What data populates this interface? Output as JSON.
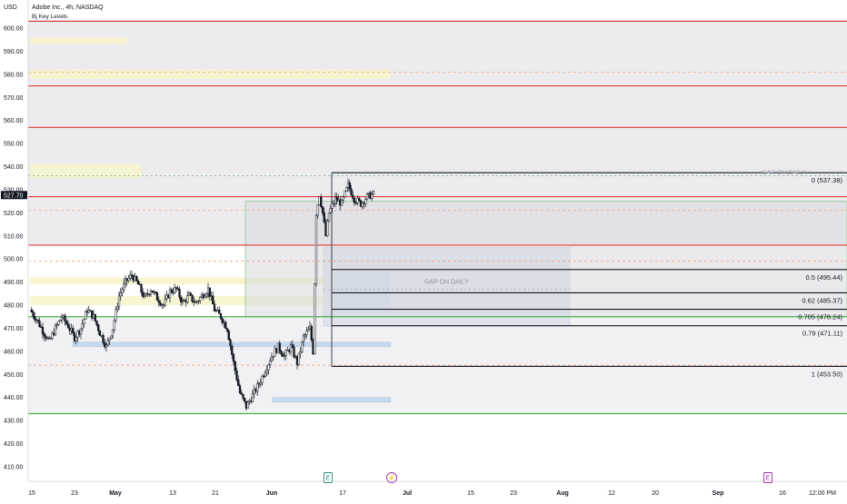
{
  "header": {
    "currency": "USD",
    "symbol_title": "Adobe Inc., 4h, NASDAQ",
    "indicator": "Bj Key Levels"
  },
  "colors": {
    "red": "#e23a3a",
    "green": "#4caf50",
    "black": "#131722",
    "gray_zone": "#e6e6ea",
    "blue_zone": "#bcd3ec",
    "yellow_zone": "#f6f5cc",
    "orange_dash": "#f29b6b",
    "candle": "#131722"
  },
  "chart_data": {
    "type": "candlestick",
    "title": "Adobe Inc., 4h, NASDAQ",
    "current_price": "527.70",
    "y_ticks": [
      "600.00",
      "590.00",
      "580.00",
      "570.00",
      "560.00",
      "550.00",
      "540.00",
      "530.00",
      "520.00",
      "510.00",
      "500.00",
      "490.00",
      "480.00",
      "470.00",
      "460.00",
      "450.00",
      "440.00",
      "430.00",
      "420.00",
      "410.00"
    ],
    "x_ticks": [
      "15",
      "23",
      "May",
      "13",
      "21",
      "Jun",
      "17",
      "Jul",
      "15",
      "23",
      "Aug",
      "12",
      "20",
      "Sep",
      "16",
      "12:00 PM"
    ],
    "ylim": [
      404,
      606
    ],
    "red_levels": [
      603,
      575,
      557,
      527,
      506
    ],
    "green_levels": [
      475,
      433
    ],
    "orange_dashed_levels": [
      581,
      521,
      499,
      454
    ],
    "fib_levels": [
      {
        "label": "0 (537.38)",
        "value": 537.38
      },
      {
        "label": "0.5 (495.44)",
        "value": 495.44
      },
      {
        "label": "0.62 (485.37)",
        "value": 485.37
      },
      {
        "label": "0.705 (478.24)",
        "value": 478.24
      },
      {
        "label": "0.79 (471.11)",
        "value": 471.11
      },
      {
        "label": "1 (453.50)",
        "value": 453.5
      }
    ],
    "annotations": [
      "GAP ON DAILY",
      "GAP ON DAILY"
    ],
    "event_markers": [
      "E",
      "⚡",
      "E"
    ],
    "price_path": [
      {
        "x": 0,
        "y": 478
      },
      {
        "x": 2,
        "y": 474
      },
      {
        "x": 4,
        "y": 469
      },
      {
        "x": 6,
        "y": 464
      },
      {
        "x": 8,
        "y": 470
      },
      {
        "x": 10,
        "y": 475
      },
      {
        "x": 12,
        "y": 471
      },
      {
        "x": 14,
        "y": 466
      },
      {
        "x": 16,
        "y": 470
      },
      {
        "x": 18,
        "y": 478
      },
      {
        "x": 20,
        "y": 475
      },
      {
        "x": 22,
        "y": 468
      },
      {
        "x": 24,
        "y": 462
      },
      {
        "x": 26,
        "y": 470
      },
      {
        "x": 28,
        "y": 484
      },
      {
        "x": 30,
        "y": 490
      },
      {
        "x": 32,
        "y": 493
      },
      {
        "x": 34,
        "y": 489
      },
      {
        "x": 36,
        "y": 483
      },
      {
        "x": 38,
        "y": 487
      },
      {
        "x": 40,
        "y": 483
      },
      {
        "x": 42,
        "y": 480
      },
      {
        "x": 44,
        "y": 486
      },
      {
        "x": 46,
        "y": 487
      },
      {
        "x": 48,
        "y": 481
      },
      {
        "x": 50,
        "y": 484
      },
      {
        "x": 52,
        "y": 481
      },
      {
        "x": 54,
        "y": 484
      },
      {
        "x": 56,
        "y": 487
      },
      {
        "x": 58,
        "y": 478
      },
      {
        "x": 60,
        "y": 475
      },
      {
        "x": 62,
        "y": 470
      },
      {
        "x": 64,
        "y": 455
      },
      {
        "x": 66,
        "y": 442
      },
      {
        "x": 68,
        "y": 436
      },
      {
        "x": 70,
        "y": 441
      },
      {
        "x": 72,
        "y": 446
      },
      {
        "x": 74,
        "y": 452
      },
      {
        "x": 76,
        "y": 458
      },
      {
        "x": 78,
        "y": 462
      },
      {
        "x": 80,
        "y": 458
      },
      {
        "x": 82,
        "y": 462
      },
      {
        "x": 84,
        "y": 455
      },
      {
        "x": 86,
        "y": 466
      },
      {
        "x": 88,
        "y": 470
      },
      {
        "x": 89,
        "y": 460
      },
      {
        "x": 90,
        "y": 520
      },
      {
        "x": 91,
        "y": 528
      },
      {
        "x": 92,
        "y": 520
      },
      {
        "x": 93,
        "y": 510
      },
      {
        "x": 94,
        "y": 520
      },
      {
        "x": 96,
        "y": 526
      },
      {
        "x": 98,
        "y": 524
      },
      {
        "x": 100,
        "y": 532
      },
      {
        "x": 102,
        "y": 526
      },
      {
        "x": 104,
        "y": 524
      },
      {
        "x": 106,
        "y": 527
      },
      {
        "x": 108,
        "y": 528
      }
    ]
  }
}
